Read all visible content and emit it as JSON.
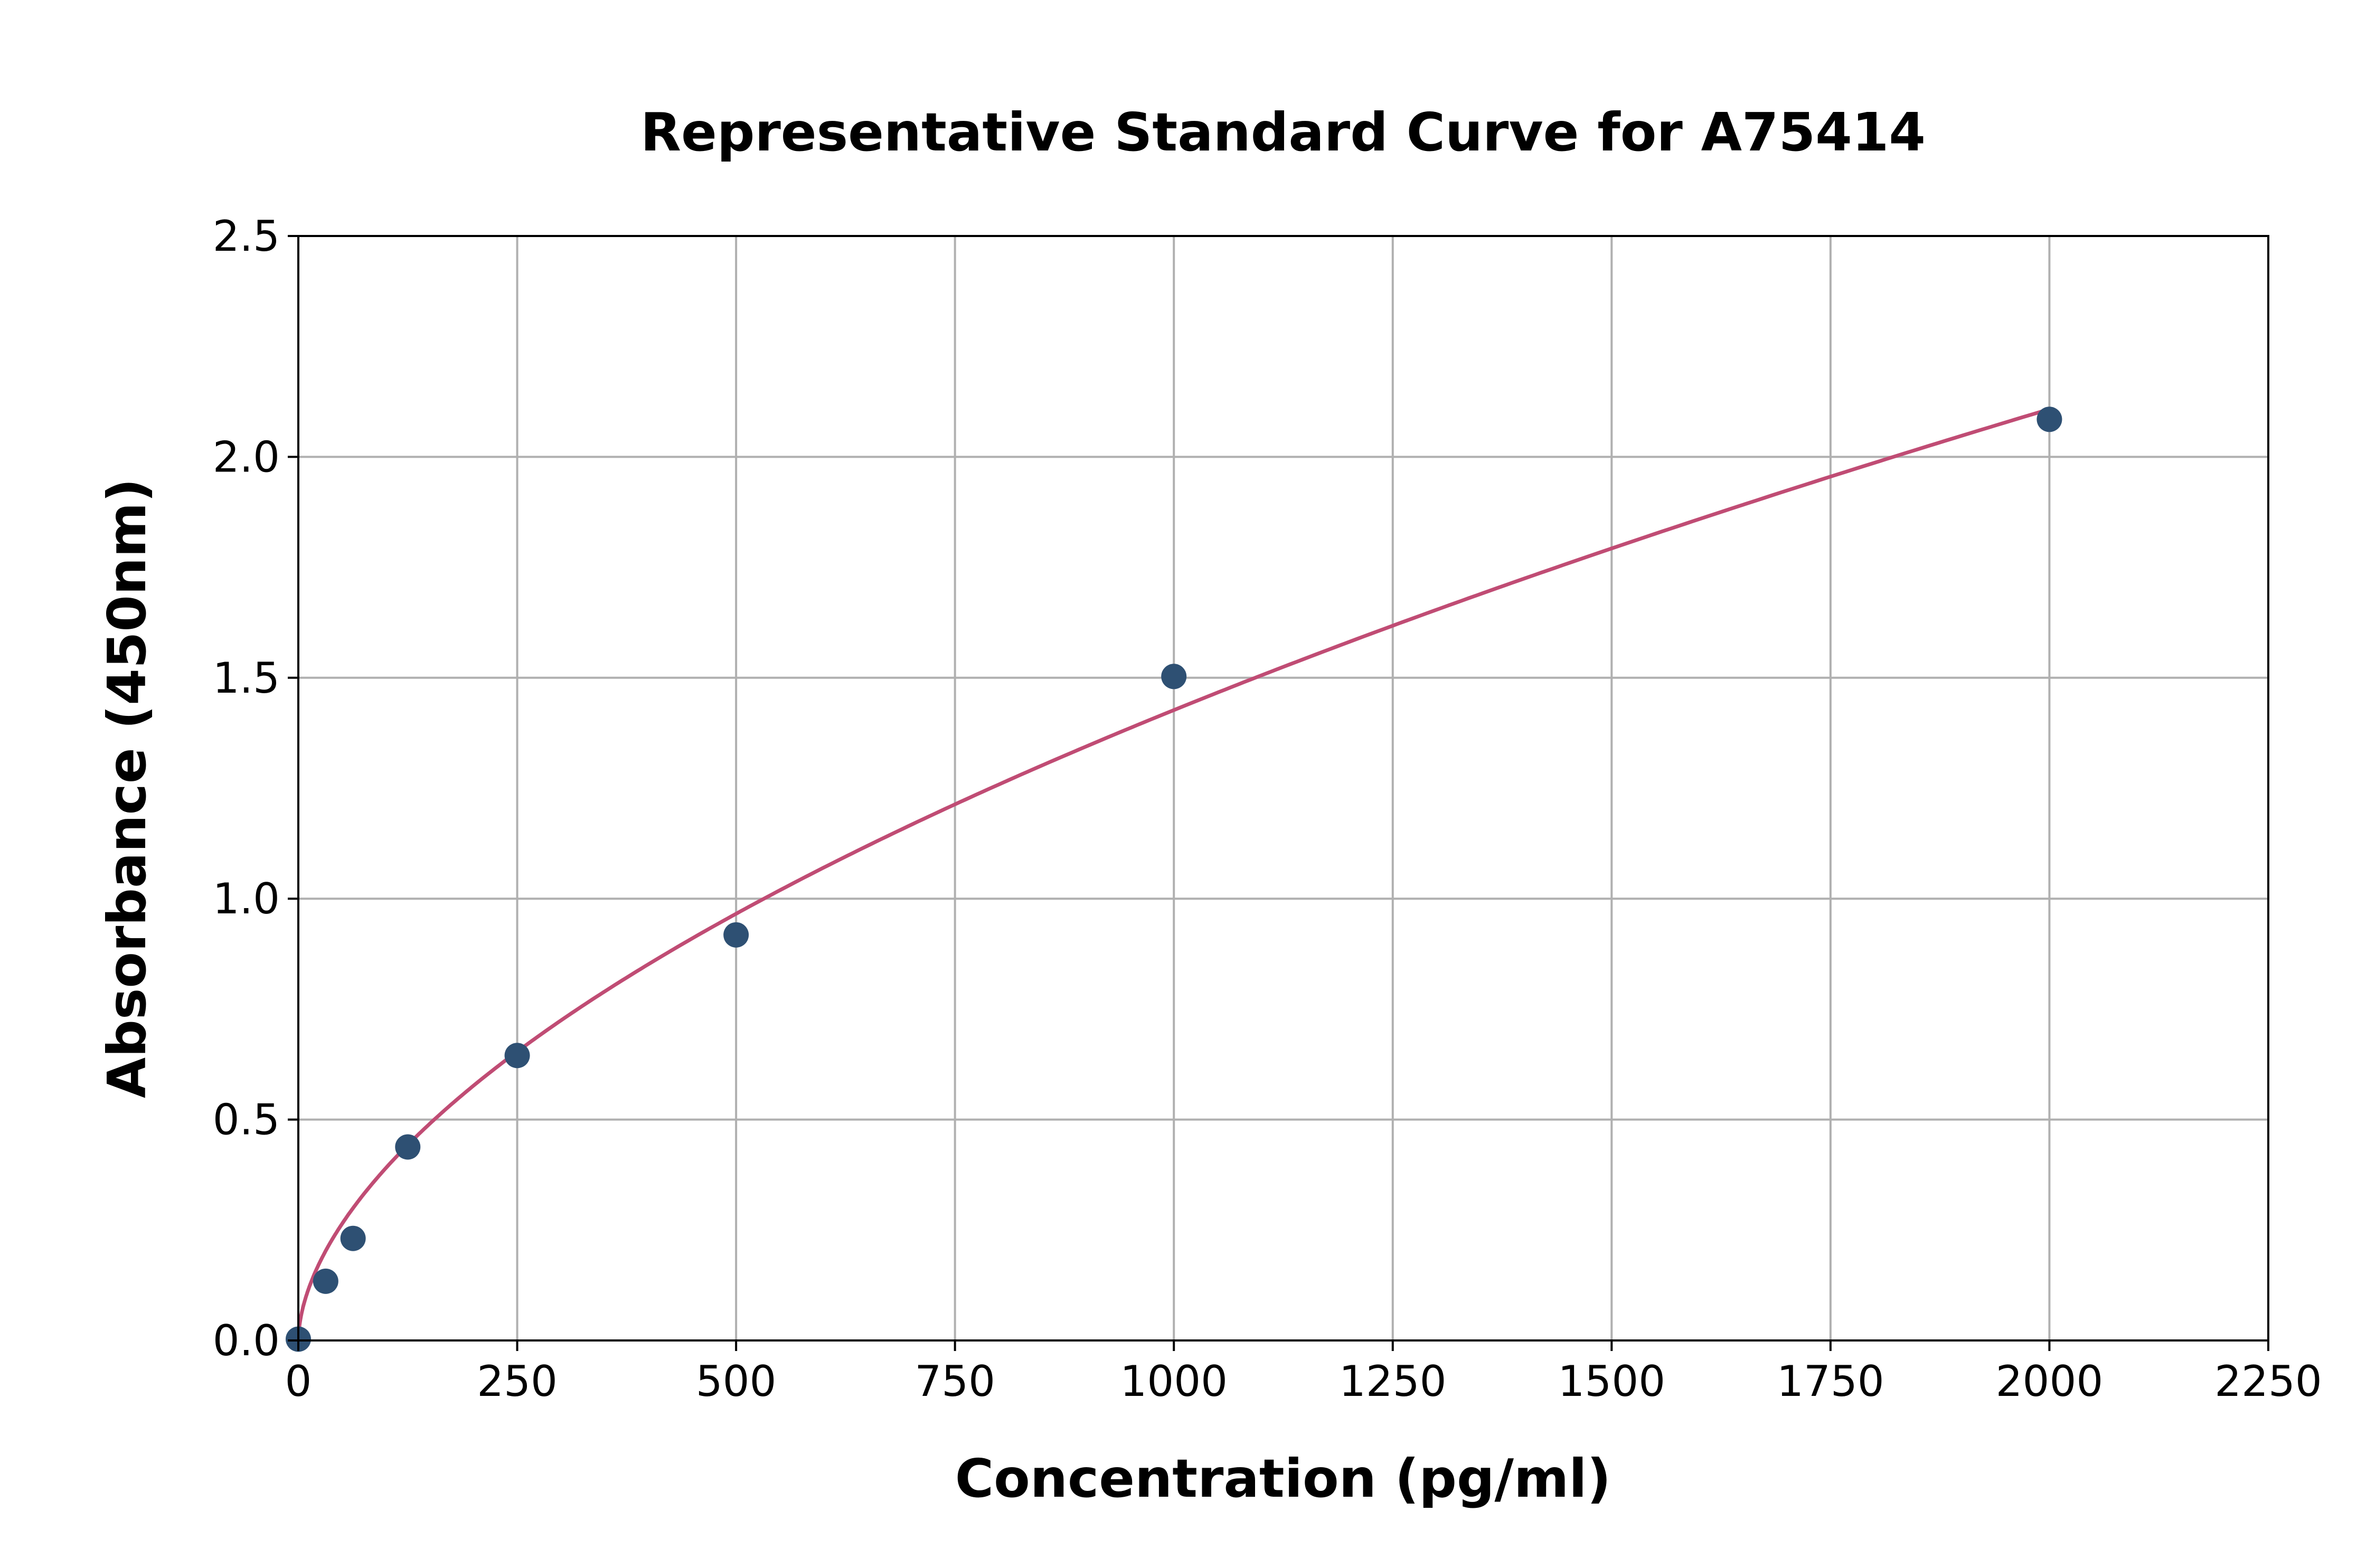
{
  "chart_data": {
    "type": "scatter",
    "title": "Representative Standard Curve for A75414",
    "xlabel": "Concentration (pg/ml)",
    "ylabel": "Absorbance (450nm)",
    "xlim": [
      0,
      2250
    ],
    "ylim": [
      0,
      2.5
    ],
    "xticks": [
      "0",
      "250",
      "500",
      "750",
      "1000",
      "1250",
      "1500",
      "1750",
      "2000",
      "2250"
    ],
    "yticks": [
      "0.0",
      "0.5",
      "1.0",
      "1.5",
      "2.0",
      "2.5"
    ],
    "grid": true,
    "points": {
      "x": [
        0,
        31.25,
        62.5,
        125,
        250,
        500,
        1000,
        2000
      ],
      "y": [
        0.003,
        0.134,
        0.231,
        0.438,
        0.645,
        0.918,
        1.503,
        2.085
      ]
    },
    "fit_curve": {
      "type": "line",
      "description_visible": false
    },
    "colors": {
      "points": "#2e5073",
      "curve": "#c04c74",
      "grid": "#b0b0b0"
    }
  }
}
